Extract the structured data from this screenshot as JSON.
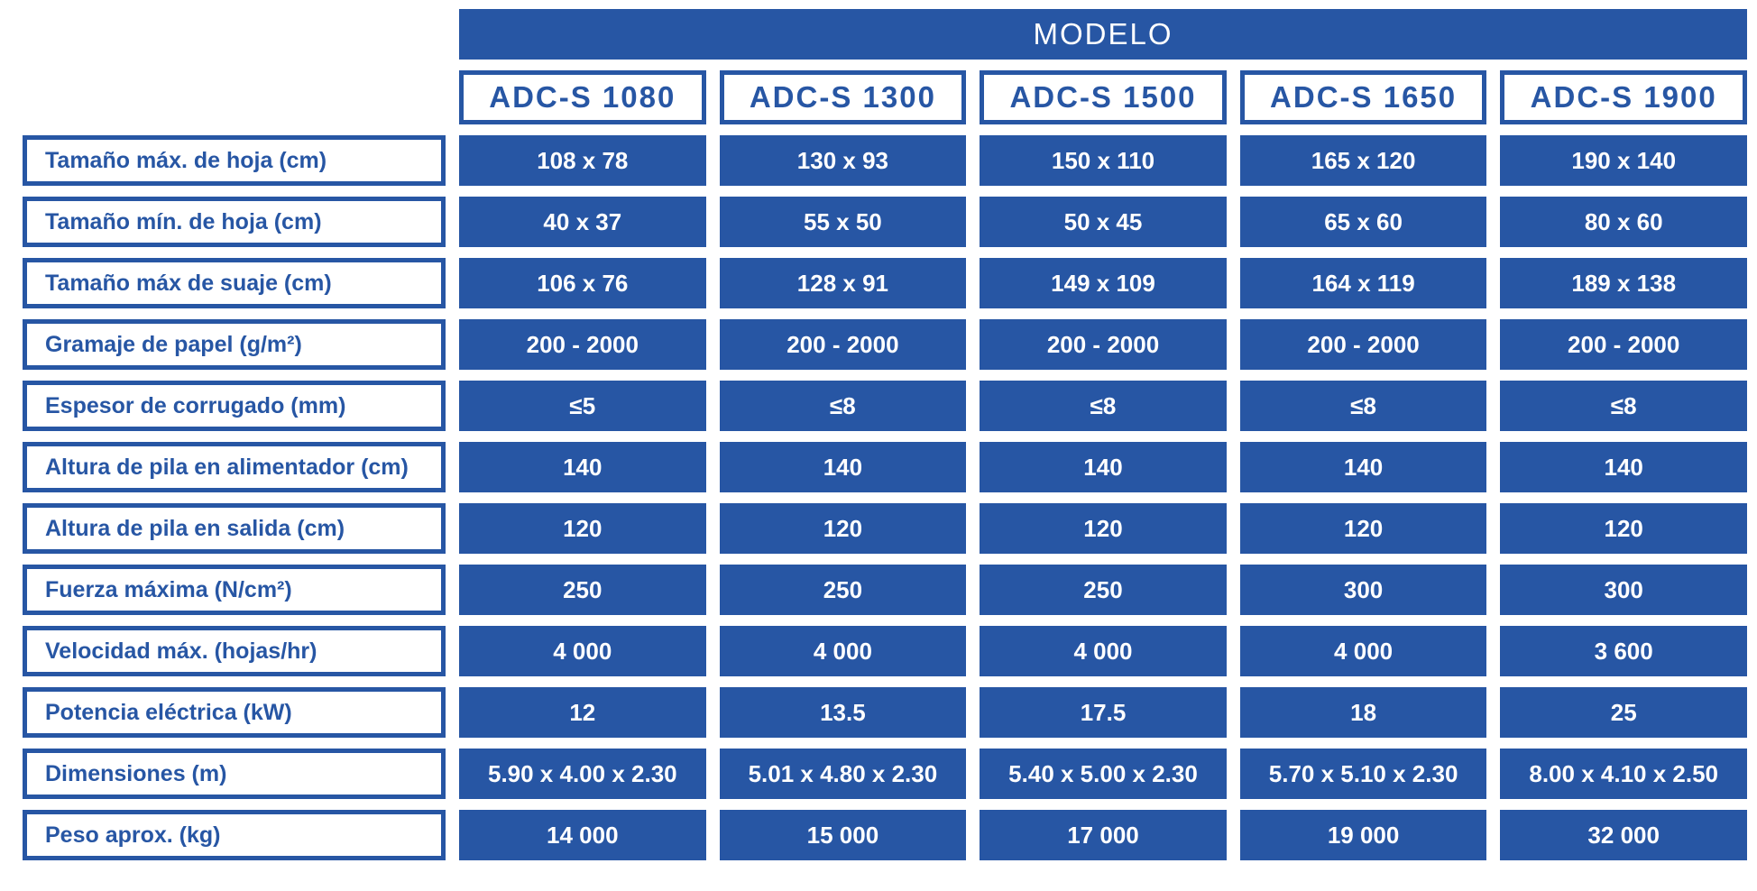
{
  "accent_color": "#2756A4",
  "table": {
    "header": "MODELO",
    "models": [
      "ADC-S 1080",
      "ADC-S 1300",
      "ADC-S 1500",
      "ADC-S 1650",
      "ADC-S 1900"
    ],
    "rows": [
      {
        "label": "Tamaño máx. de hoja (cm)",
        "values": [
          "108 x 78",
          "130 x 93",
          "150 x 110",
          "165 x 120",
          "190 x 140"
        ]
      },
      {
        "label": "Tamaño mín. de hoja (cm)",
        "values": [
          "40 x 37",
          "55 x 50",
          "50 x 45",
          "65 x 60",
          "80 x 60"
        ]
      },
      {
        "label": "Tamaño máx de suaje (cm)",
        "values": [
          "106 x 76",
          "128 x 91",
          "149 x 109",
          "164 x 119",
          "189 x 138"
        ]
      },
      {
        "label": "Gramaje de papel (g/m²)",
        "values": [
          "200 - 2000",
          "200 - 2000",
          "200 - 2000",
          "200 - 2000",
          "200 - 2000"
        ]
      },
      {
        "label": "Espesor de corrugado (mm)",
        "values": [
          "≤5",
          "≤8",
          "≤8",
          "≤8",
          "≤8"
        ]
      },
      {
        "label": "Altura de pila en alimentador (cm)",
        "values": [
          "140",
          "140",
          "140",
          "140",
          "140"
        ]
      },
      {
        "label": "Altura de pila en salida (cm)",
        "values": [
          "120",
          "120",
          "120",
          "120",
          "120"
        ]
      },
      {
        "label": "Fuerza máxima (N/cm²)",
        "values": [
          "250",
          "250",
          "250",
          "300",
          "300"
        ]
      },
      {
        "label": "Velocidad máx. (hojas/hr)",
        "values": [
          "4 000",
          "4 000",
          "4 000",
          "4 000",
          "3 600"
        ]
      },
      {
        "label": "Potencia eléctrica (kW)",
        "values": [
          "12",
          "13.5",
          "17.5",
          "18",
          "25"
        ]
      },
      {
        "label": "Dimensiones (m)",
        "values": [
          "5.90 x 4.00 x 2.30",
          "5.01 x 4.80 x 2.30",
          "5.40 x 5.00 x 2.30",
          "5.70 x 5.10 x 2.30",
          "8.00 x 4.10 x 2.50"
        ]
      },
      {
        "label": "Peso aprox. (kg)",
        "values": [
          "14 000",
          "15 000",
          "17 000",
          "19 000",
          "32 000"
        ]
      }
    ]
  }
}
